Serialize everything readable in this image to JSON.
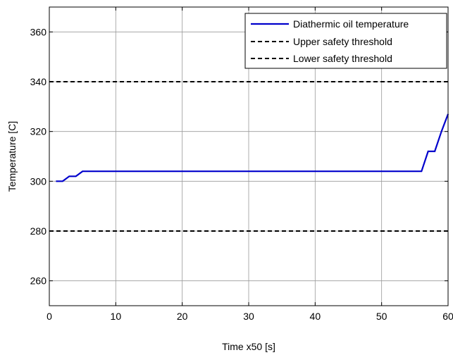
{
  "chart_data": {
    "type": "line",
    "title": "",
    "xlabel": "Time x50 [s]",
    "ylabel": "Temperature [C]",
    "xlim": [
      0,
      60
    ],
    "ylim": [
      250,
      370
    ],
    "xticks": [
      0,
      10,
      20,
      30,
      40,
      50,
      60
    ],
    "yticks": [
      260,
      280,
      300,
      320,
      340,
      360
    ],
    "grid": true,
    "legend_position": "top-right",
    "series": [
      {
        "name": "Diathermic oil temperature",
        "color": "#0000cc",
        "style": "solid",
        "x": [
          1,
          2,
          3,
          4,
          5,
          10,
          20,
          30,
          40,
          50,
          56,
          57,
          58,
          59,
          60
        ],
        "y": [
          300,
          300,
          302,
          302,
          304,
          304,
          304,
          304,
          304,
          304,
          304,
          312,
          312,
          320,
          327
        ]
      },
      {
        "name": "Upper safety threshold",
        "color": "#000000",
        "style": "dashed",
        "x": [
          0,
          60
        ],
        "y": [
          340,
          340
        ]
      },
      {
        "name": "Lower safety threshold",
        "color": "#000000",
        "style": "dashed",
        "x": [
          0,
          60
        ],
        "y": [
          280,
          280
        ]
      }
    ]
  }
}
